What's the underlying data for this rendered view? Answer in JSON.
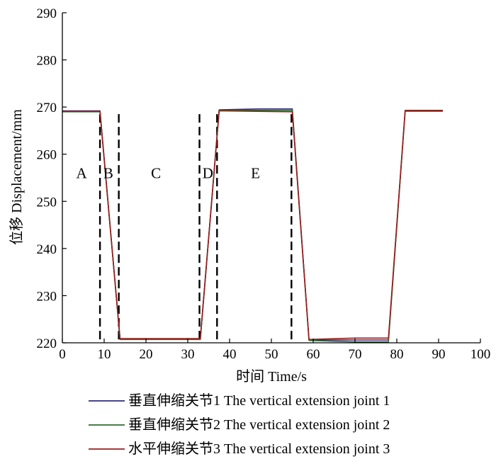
{
  "chart_data": {
    "type": "line",
    "xlabel": "时间 Time/s",
    "ylabel": "位移 Displacement/mm",
    "xlim": [
      0,
      100
    ],
    "ylim": [
      220,
      290
    ],
    "xticks": [
      0,
      10,
      20,
      30,
      40,
      50,
      60,
      70,
      80,
      90,
      100
    ],
    "yticks": [
      220,
      230,
      240,
      250,
      260,
      270,
      280,
      290
    ],
    "grid": false,
    "legend_position": "bottom",
    "phase_boundaries": [
      9,
      13.5,
      32.8,
      37,
      54.8
    ],
    "phase_labels": [
      {
        "text": "A",
        "x": 4.6,
        "y": 256
      },
      {
        "text": "B",
        "x": 11,
        "y": 256
      },
      {
        "text": "C",
        "x": 22.4,
        "y": 256
      },
      {
        "text": "D",
        "x": 34.8,
        "y": 256
      },
      {
        "text": "E",
        "x": 46.2,
        "y": 256
      }
    ],
    "series": [
      {
        "name": "垂直伸缩关节1 The vertical extension joint 1",
        "color": "#2b2b7a",
        "x": [
          0,
          9,
          13.8,
          33,
          37.5,
          47,
          55,
          59,
          69,
          78,
          82,
          91
        ],
        "y": [
          269.2,
          269.2,
          220.8,
          220.8,
          269.4,
          269.6,
          269.6,
          220.6,
          220.6,
          220.6,
          269.2,
          269.2
        ]
      },
      {
        "name": "垂直伸缩关节2 The vertical extension joint 2",
        "color": "#2e6b2e",
        "x": [
          0,
          9,
          13.8,
          33,
          37.5,
          55,
          59,
          70,
          78,
          82,
          91
        ],
        "y": [
          269.0,
          269.0,
          220.7,
          220.7,
          269.3,
          269.3,
          220.5,
          220.2,
          220.2,
          269.1,
          269.1
        ]
      },
      {
        "name": "水平伸缩关节3 The vertical extension joint 3",
        "color": "#9b1c1c",
        "x": [
          0,
          9,
          13.8,
          33,
          37.5,
          55,
          59,
          70,
          78,
          82,
          91
        ],
        "y": [
          269.1,
          269.1,
          220.9,
          220.9,
          269.2,
          269.0,
          220.7,
          221.0,
          221.0,
          269.3,
          269.3
        ]
      }
    ]
  }
}
